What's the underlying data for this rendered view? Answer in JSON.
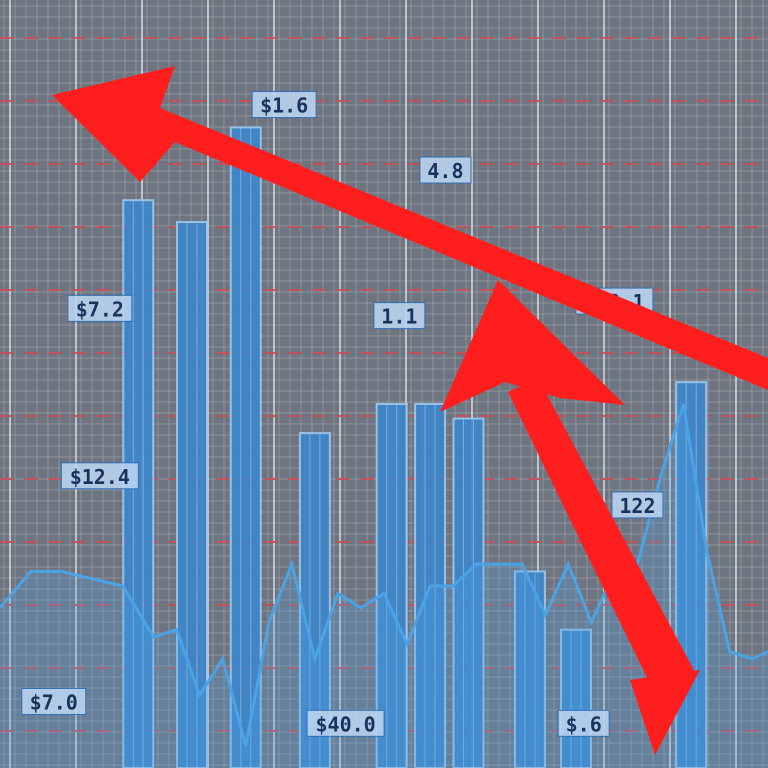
{
  "chart_data": {
    "type": "bar",
    "title": "",
    "xlabel": "",
    "ylabel": "",
    "grid": true,
    "legend": "none",
    "ylim": [
      0,
      100
    ],
    "bars": [
      {
        "x": 18,
        "value": 78
      },
      {
        "x": 25,
        "value": 75
      },
      {
        "x": 32,
        "value": 88
      },
      {
        "x": 41,
        "value": 46
      },
      {
        "x": 51,
        "value": 50
      },
      {
        "x": 56,
        "value": 50
      },
      {
        "x": 61,
        "value": 48
      },
      {
        "x": 69,
        "value": 27
      },
      {
        "x": 75,
        "value": 19
      },
      {
        "x": 90,
        "value": 53
      }
    ],
    "line": {
      "x": [
        0,
        4,
        8,
        12,
        16,
        20,
        23,
        26,
        29,
        32,
        35,
        38,
        41,
        44,
        47,
        50,
        53,
        56,
        59,
        62,
        65,
        68,
        71,
        74,
        77,
        80,
        83,
        86,
        89,
        92,
        95,
        98,
        100
      ],
      "y": [
        22,
        27,
        27,
        26,
        25,
        18,
        19,
        10,
        15,
        3,
        20,
        28,
        15,
        24,
        22,
        24,
        17,
        25,
        25,
        28,
        28,
        28,
        21,
        28,
        20,
        27,
        28,
        40,
        50,
        30,
        16,
        15,
        16
      ]
    },
    "annotations": [
      {
        "text": "$1.6",
        "x": 37,
        "y": 91
      },
      {
        "text": "4.8",
        "x": 58,
        "y": 82
      },
      {
        "text": "$7.2",
        "x": 13,
        "y": 63
      },
      {
        "text": "1.1",
        "x": 52,
        "y": 62
      },
      {
        "text": "$22.1",
        "x": 80,
        "y": 64
      },
      {
        "text": "$12.4",
        "x": 13,
        "y": 40
      },
      {
        "text": "122",
        "x": 83,
        "y": 36
      },
      {
        "text": "$7.0",
        "x": 7,
        "y": 9
      },
      {
        "text": "$40.0",
        "x": 45,
        "y": 6
      },
      {
        "text": "$.6",
        "x": 76,
        "y": 6
      }
    ]
  },
  "colors": {
    "background": "#6f7580",
    "grid_fine": "#a4aab2",
    "grid_major": "#dfe3e8",
    "grid_red": "#c8505a",
    "bar": "#3d86cc",
    "bar_edge": "#9cc9f0",
    "line": "#4aa3e6",
    "arrow": "#ff1e1e",
    "label_bg": "#b9d3ee",
    "label_text": "#16345c"
  }
}
